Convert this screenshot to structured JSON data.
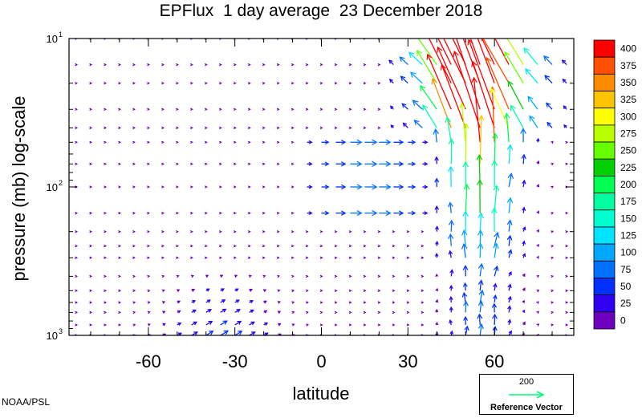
{
  "chart_data": {
    "type": "vector-field",
    "title": "EPFlux  1 day average  23 December 2018",
    "xlabel": "latitude",
    "ylabel": "pressure (mb)  log-scale",
    "credit": "NOAA/PSL",
    "x_ticks": [
      "-60",
      "-30",
      "0",
      "30",
      "60"
    ],
    "x_tick_values": [
      -60,
      -30,
      0,
      30,
      60
    ],
    "xlim": [
      -87.5,
      87.5
    ],
    "y_scale": "log",
    "y_ticks": [
      {
        "base": "10",
        "exp": "1",
        "value": 10
      },
      {
        "base": "10",
        "exp": "2",
        "value": 100
      },
      {
        "base": "10",
        "exp": "3",
        "value": 1000
      }
    ],
    "ylim": [
      1000,
      10
    ],
    "colorbar": {
      "labels": [
        "400",
        "375",
        "350",
        "325",
        "300",
        "275",
        "250",
        "225",
        "200",
        "175",
        "150",
        "125",
        "100",
        "75",
        "50",
        "25",
        "0"
      ],
      "colors": [
        "#ff0000",
        "#ff4f00",
        "#ff8c00",
        "#ffc400",
        "#ffff00",
        "#b9ff00",
        "#66ff00",
        "#00d000",
        "#00ff50",
        "#00ffa0",
        "#00ffd0",
        "#00e4ff",
        "#00a8ff",
        "#0070ff",
        "#0030ff",
        "#3000f0",
        "#7000c0"
      ]
    },
    "reference_vector": {
      "magnitude": "200",
      "label": "Reference Vector"
    }
  }
}
